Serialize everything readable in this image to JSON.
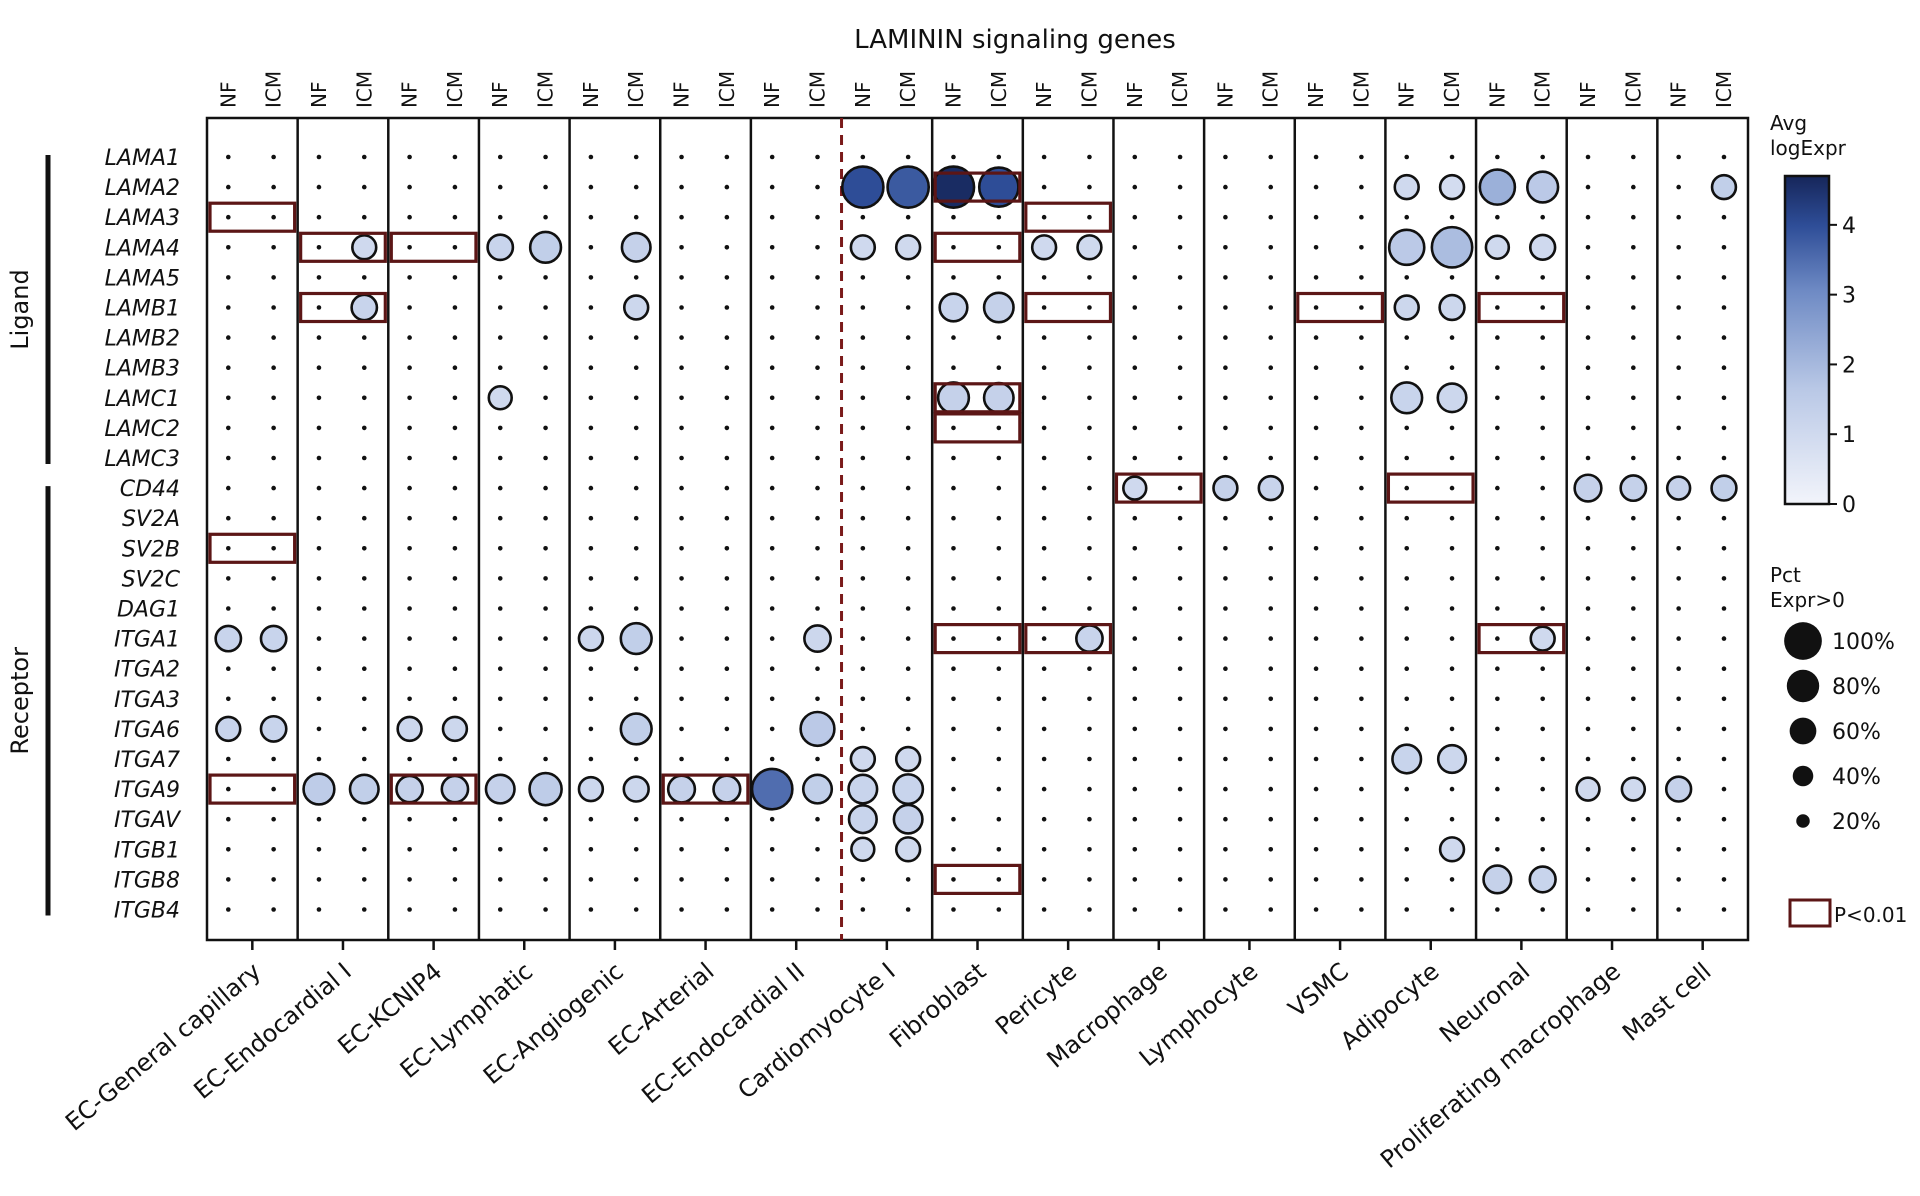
{
  "chart_data": {
    "type": "dotplot",
    "title": "LAMININ signaling genes",
    "conditions": [
      "NF",
      "ICM"
    ],
    "cell_types": [
      "EC-General capillary",
      "EC-Endocardial I",
      "EC-KCNIP4",
      "EC-Lymphatic",
      "EC-Angiogenic",
      "EC-Arterial",
      "EC-Endocardial II",
      "Cardiomyocyte I",
      "Fibroblast",
      "Pericyte",
      "Macrophage",
      "Lymphocyte",
      "VSMC",
      "Adipocyte",
      "Neuronal",
      "Proliferating macrophage",
      "Mast cell"
    ],
    "genes": [
      "LAMA1",
      "LAMA2",
      "LAMA3",
      "LAMA4",
      "LAMA5",
      "LAMB1",
      "LAMB2",
      "LAMB3",
      "LAMC1",
      "LAMC2",
      "LAMC3",
      "CD44",
      "SV2A",
      "SV2B",
      "SV2C",
      "DAG1",
      "ITGA1",
      "ITGA2",
      "ITGA3",
      "ITGA6",
      "ITGA7",
      "ITGA9",
      "ITGAV",
      "ITGB1",
      "ITGB8",
      "ITGB4"
    ],
    "groups": [
      {
        "label": "Ligand",
        "genes": [
          "LAMA1",
          "LAMC3"
        ]
      },
      {
        "label": "Receptor",
        "genes": [
          "CD44",
          "ITGB4"
        ]
      }
    ],
    "divider_after_cell_type": "EC-Endocardial II",
    "color_legend": {
      "title_line1": "Avg",
      "title_line2": "logExpr",
      "range": [
        0,
        4.7
      ],
      "ticks": [
        0,
        1,
        2,
        3,
        4
      ]
    },
    "size_legend": {
      "title_line1": "Pct",
      "title_line2": "Expr>0",
      "labels": [
        "100%",
        "80%",
        "60%",
        "40%",
        "20%"
      ],
      "values": [
        100,
        80,
        60,
        40,
        20
      ]
    },
    "significance_label": "P<0.01",
    "dots": [
      {
        "g": "LAMA2",
        "c": "Cardiomyocyte I",
        "nf": [
          4.0,
          70
        ],
        "icm": [
          3.8,
          70
        ]
      },
      {
        "g": "LAMA2",
        "c": "Fibroblast",
        "nf": [
          4.6,
          70
        ],
        "icm": [
          4.0,
          65
        ]
      },
      {
        "g": "LAMA2",
        "c": "Neuronal",
        "nf": [
          2.2,
          55
        ],
        "icm": [
          1.6,
          45
        ]
      },
      {
        "g": "LAMA2",
        "c": "Adipocyte",
        "nf": [
          1.0,
          30
        ],
        "icm": [
          0.9,
          30
        ]
      },
      {
        "g": "LAMA2",
        "c": "Mast cell",
        "icm": [
          1.4,
          30
        ]
      },
      {
        "g": "LAMA4",
        "c": "EC-Lymphatic",
        "nf": [
          1.2,
          33
        ],
        "icm": [
          1.4,
          45
        ]
      },
      {
        "g": "LAMA4",
        "c": "EC-Angiogenic",
        "icm": [
          1.3,
          40
        ]
      },
      {
        "g": "LAMA4",
        "c": "EC-Endocardial I",
        "icm": [
          1.0,
          30
        ]
      },
      {
        "g": "LAMA4",
        "c": "Cardiomyocyte I",
        "nf": [
          1.0,
          30
        ],
        "icm": [
          1.0,
          30
        ]
      },
      {
        "g": "LAMA4",
        "c": "Pericyte",
        "nf": [
          1.0,
          30
        ],
        "icm": [
          1.0,
          30
        ]
      },
      {
        "g": "LAMA4",
        "c": "Adipocyte",
        "nf": [
          1.6,
          55
        ],
        "icm": [
          1.9,
          68
        ]
      },
      {
        "g": "LAMA4",
        "c": "Neuronal",
        "nf": [
          1.0,
          28
        ],
        "icm": [
          1.0,
          32
        ]
      },
      {
        "g": "LAMB1",
        "c": "EC-Endocardial I",
        "icm": [
          1.2,
          33
        ]
      },
      {
        "g": "LAMB1",
        "c": "EC-Angiogenic",
        "icm": [
          1.1,
          30
        ]
      },
      {
        "g": "LAMB1",
        "c": "Fibroblast",
        "nf": [
          1.2,
          38
        ],
        "icm": [
          1.3,
          42
        ]
      },
      {
        "g": "LAMB1",
        "c": "Adipocyte",
        "nf": [
          1.1,
          30
        ],
        "icm": [
          1.1,
          32
        ]
      },
      {
        "g": "LAMC1",
        "c": "Fibroblast",
        "nf": [
          1.3,
          45
        ],
        "icm": [
          1.3,
          42
        ]
      },
      {
        "g": "LAMC1",
        "c": "Adipocyte",
        "nf": [
          1.2,
          45
        ],
        "icm": [
          1.1,
          40
        ]
      },
      {
        "g": "LAMC1",
        "c": "EC-Lymphatic",
        "nf": [
          1.0,
          28
        ]
      },
      {
        "g": "CD44",
        "c": "Macrophage",
        "nf": [
          1.0,
          28
        ]
      },
      {
        "g": "CD44",
        "c": "Lymphocyte",
        "nf": [
          1.3,
          30
        ],
        "icm": [
          1.2,
          30
        ]
      },
      {
        "g": "CD44",
        "c": "Proliferating macrophage",
        "nf": [
          1.3,
          36
        ],
        "icm": [
          1.3,
          33
        ]
      },
      {
        "g": "CD44",
        "c": "Mast cell",
        "nf": [
          1.3,
          28
        ],
        "icm": [
          1.4,
          32
        ]
      },
      {
        "g": "ITGA1",
        "c": "EC-General capillary",
        "nf": [
          1.2,
          33
        ],
        "icm": [
          1.2,
          33
        ]
      },
      {
        "g": "ITGA1",
        "c": "EC-Angiogenic",
        "nf": [
          1.1,
          30
        ],
        "icm": [
          1.4,
          45
        ]
      },
      {
        "g": "ITGA1",
        "c": "EC-Endocardial II",
        "icm": [
          1.1,
          35
        ]
      },
      {
        "g": "ITGA1",
        "c": "Pericyte",
        "icm": [
          1.2,
          35
        ]
      },
      {
        "g": "ITGA1",
        "c": "Neuronal",
        "icm": [
          1.0,
          30
        ]
      },
      {
        "g": "ITGA6",
        "c": "EC-General capillary",
        "nf": [
          1.2,
          30
        ],
        "icm": [
          1.2,
          33
        ]
      },
      {
        "g": "ITGA6",
        "c": "EC-KCNIP4",
        "nf": [
          1.1,
          30
        ],
        "icm": [
          1.1,
          30
        ]
      },
      {
        "g": "ITGA6",
        "c": "EC-Angiogenic",
        "icm": [
          1.4,
          45
        ]
      },
      {
        "g": "ITGA6",
        "c": "EC-Endocardial II",
        "icm": [
          1.6,
          52
        ]
      },
      {
        "g": "ITGA7",
        "c": "Cardiomyocyte I",
        "nf": [
          1.0,
          30
        ],
        "icm": [
          1.0,
          30
        ]
      },
      {
        "g": "ITGA7",
        "c": "Adipocyte",
        "nf": [
          1.2,
          40
        ],
        "icm": [
          1.1,
          38
        ]
      },
      {
        "g": "ITGA9",
        "c": "EC-Endocardial I",
        "nf": [
          1.5,
          45
        ],
        "icm": [
          1.4,
          40
        ]
      },
      {
        "g": "ITGA9",
        "c": "EC-KCNIP4",
        "nf": [
          1.3,
          35
        ],
        "icm": [
          1.3,
          35
        ]
      },
      {
        "g": "ITGA9",
        "c": "EC-Lymphatic",
        "nf": [
          1.3,
          40
        ],
        "icm": [
          1.5,
          48
        ]
      },
      {
        "g": "ITGA9",
        "c": "EC-Angiogenic",
        "nf": [
          1.1,
          30
        ],
        "icm": [
          1.1,
          32
        ]
      },
      {
        "g": "ITGA9",
        "c": "EC-Arterial",
        "nf": [
          1.3,
          36
        ],
        "icm": [
          1.3,
          36
        ]
      },
      {
        "g": "ITGA9",
        "c": "EC-Endocardial II",
        "nf": [
          3.5,
          68
        ],
        "icm": [
          1.4,
          40
        ]
      },
      {
        "g": "ITGA9",
        "c": "Cardiomyocyte I",
        "nf": [
          1.2,
          40
        ],
        "icm": [
          1.2,
          42
        ]
      },
      {
        "g": "ITGA9",
        "c": "Proliferating macrophage",
        "nf": [
          1.0,
          28
        ],
        "icm": [
          1.0,
          28
        ]
      },
      {
        "g": "ITGA9",
        "c": "Mast cell",
        "nf": [
          1.3,
          32
        ]
      },
      {
        "g": "ITGAV",
        "c": "Cardiomyocyte I",
        "nf": [
          1.2,
          38
        ],
        "icm": [
          1.3,
          40
        ]
      },
      {
        "g": "ITGB1",
        "c": "Cardiomyocyte I",
        "nf": [
          1.0,
          28
        ],
        "icm": [
          1.0,
          30
        ]
      },
      {
        "g": "ITGB1",
        "c": "Adipocyte",
        "icm": [
          1.0,
          30
        ]
      },
      {
        "g": "ITGB8",
        "c": "Neuronal",
        "nf": [
          1.3,
          38
        ],
        "icm": [
          1.2,
          34
        ]
      }
    ],
    "significant": [
      {
        "g": "LAMA3",
        "c": "EC-General capillary"
      },
      {
        "g": "LAMA3",
        "c": "Pericyte"
      },
      {
        "g": "LAMA4",
        "c": "EC-Endocardial I"
      },
      {
        "g": "LAMA4",
        "c": "EC-KCNIP4"
      },
      {
        "g": "LAMA4",
        "c": "Fibroblast"
      },
      {
        "g": "LAMB1",
        "c": "EC-Endocardial I"
      },
      {
        "g": "LAMB1",
        "c": "Pericyte"
      },
      {
        "g": "LAMB1",
        "c": "VSMC"
      },
      {
        "g": "LAMB1",
        "c": "Neuronal"
      },
      {
        "g": "LAMA2",
        "c": "Fibroblast"
      },
      {
        "g": "LAMC1",
        "c": "Fibroblast"
      },
      {
        "g": "LAMC2",
        "c": "Fibroblast"
      },
      {
        "g": "CD44",
        "c": "Macrophage"
      },
      {
        "g": "CD44",
        "c": "Adipocyte"
      },
      {
        "g": "SV2B",
        "c": "EC-General capillary"
      },
      {
        "g": "ITGA1",
        "c": "Fibroblast"
      },
      {
        "g": "ITGA1",
        "c": "Pericyte"
      },
      {
        "g": "ITGA1",
        "c": "Neuronal"
      },
      {
        "g": "ITGA9",
        "c": "EC-General capillary"
      },
      {
        "g": "ITGA9",
        "c": "EC-KCNIP4"
      },
      {
        "g": "ITGA9",
        "c": "EC-Arterial"
      },
      {
        "g": "ITGB8",
        "c": "Fibroblast"
      }
    ]
  }
}
